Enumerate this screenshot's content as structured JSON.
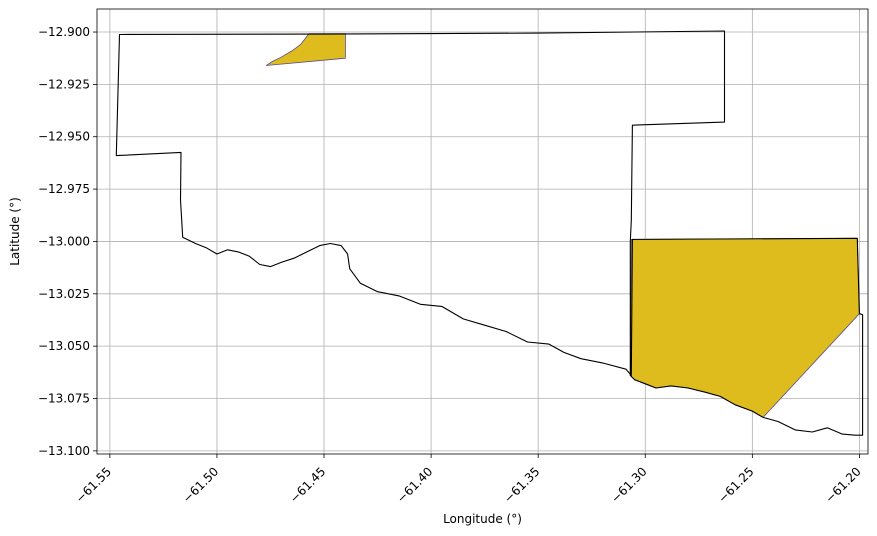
{
  "chart_data": {
    "type": "map",
    "xlabel": "Longitude (°)",
    "ylabel": "Latitude (°)",
    "xlim": [
      -61.556,
      -61.196
    ],
    "ylim": [
      -13.1015,
      -12.889
    ],
    "grid": true,
    "x_ticks": [
      {
        "value": -61.55,
        "label": "−61.55"
      },
      {
        "value": -61.5,
        "label": "−61.50"
      },
      {
        "value": -61.45,
        "label": "−61.45"
      },
      {
        "value": -61.4,
        "label": "−61.40"
      },
      {
        "value": -61.35,
        "label": "−61.35"
      },
      {
        "value": -61.3,
        "label": "−61.30"
      },
      {
        "value": -61.25,
        "label": "−61.25"
      },
      {
        "value": -61.2,
        "label": "−61.20"
      }
    ],
    "y_ticks": [
      {
        "value": -12.9,
        "label": "−12.900"
      },
      {
        "value": -12.925,
        "label": "−12.925"
      },
      {
        "value": -12.95,
        "label": "−12.950"
      },
      {
        "value": -12.975,
        "label": "−12.975"
      },
      {
        "value": -13.0,
        "label": "−13.000"
      },
      {
        "value": -13.025,
        "label": "−13.025"
      },
      {
        "value": -13.05,
        "label": "−13.050"
      },
      {
        "value": -13.075,
        "label": "−13.075"
      },
      {
        "value": -13.1,
        "label": "−13.100"
      }
    ],
    "boundary": {
      "stroke": "#000000",
      "fill": "none",
      "coords": [
        [
          -61.5455,
          -12.9012
        ],
        [
          -61.45,
          -12.901
        ],
        [
          -61.35,
          -12.9005
        ],
        [
          -61.263,
          -12.8995
        ],
        [
          -61.263,
          -12.943
        ],
        [
          -61.306,
          -12.9445
        ],
        [
          -61.3065,
          -12.99
        ],
        [
          -61.307,
          -13.0
        ],
        [
          -61.307,
          -13.064
        ],
        [
          -61.305,
          -13.066
        ],
        [
          -61.3,
          -13.068
        ],
        [
          -61.295,
          -13.07
        ],
        [
          -61.288,
          -13.069
        ],
        [
          -61.28,
          -13.07
        ],
        [
          -61.272,
          -13.072
        ],
        [
          -61.265,
          -13.074
        ],
        [
          -61.258,
          -13.078
        ],
        [
          -61.25,
          -13.081
        ],
        [
          -61.245,
          -13.084
        ],
        [
          -61.238,
          -13.086
        ],
        [
          -61.23,
          -13.09
        ],
        [
          -61.222,
          -13.091
        ],
        [
          -61.215,
          -13.089
        ],
        [
          -61.208,
          -13.092
        ],
        [
          -61.202,
          -13.0925
        ],
        [
          -61.1985,
          -13.0925
        ],
        [
          -61.1985,
          -13.035
        ],
        [
          -61.2,
          -13.0345
        ],
        [
          -61.201,
          -12.9985
        ],
        [
          -61.306,
          -12.999
        ],
        [
          -61.3065,
          -13.064
        ],
        [
          -61.309,
          -13.061
        ],
        [
          -61.32,
          -13.058
        ],
        [
          -61.33,
          -13.056
        ],
        [
          -61.338,
          -13.053
        ],
        [
          -61.345,
          -13.049
        ],
        [
          -61.355,
          -13.048
        ],
        [
          -61.365,
          -13.043
        ],
        [
          -61.375,
          -13.04
        ],
        [
          -61.385,
          -13.037
        ],
        [
          -61.395,
          -13.031
        ],
        [
          -61.405,
          -13.03
        ],
        [
          -61.415,
          -13.026
        ],
        [
          -61.425,
          -13.024
        ],
        [
          -61.433,
          -13.02
        ],
        [
          -61.438,
          -13.013
        ],
        [
          -61.439,
          -13.006
        ],
        [
          -61.442,
          -13.002
        ],
        [
          -61.447,
          -13.001
        ],
        [
          -61.452,
          -13.002
        ],
        [
          -61.458,
          -13.005
        ],
        [
          -61.464,
          -13.008
        ],
        [
          -61.47,
          -13.01
        ],
        [
          -61.475,
          -13.012
        ],
        [
          -61.48,
          -13.011
        ],
        [
          -61.485,
          -13.007
        ],
        [
          -61.49,
          -13.005
        ],
        [
          -61.495,
          -13.004
        ],
        [
          -61.5,
          -13.006
        ],
        [
          -61.505,
          -13.003
        ],
        [
          -61.51,
          -13.001
        ],
        [
          -61.516,
          -12.998
        ],
        [
          -61.517,
          -12.98
        ],
        [
          -61.5168,
          -12.9575
        ],
        [
          -61.547,
          -12.959
        ],
        [
          -61.5455,
          -12.9012
        ]
      ]
    },
    "highlighted_areas": [
      {
        "fill": "#dfbc1e",
        "stroke": "#5b4c8c",
        "coords": [
          [
            -61.457,
            -12.9008
          ],
          [
            -61.44,
            -12.9008
          ],
          [
            -61.44,
            -12.9125
          ],
          [
            -61.477,
            -12.916
          ],
          [
            -61.474,
            -12.914
          ],
          [
            -61.47,
            -12.912
          ],
          [
            -61.465,
            -12.909
          ],
          [
            -61.461,
            -12.906
          ],
          [
            -61.457,
            -12.9008
          ]
        ]
      },
      {
        "fill": "#dfbc1e",
        "stroke": "#5b4c8c",
        "coords": [
          [
            -61.3065,
            -12.999
          ],
          [
            -61.201,
            -12.9985
          ],
          [
            -61.2,
            -13.0345
          ],
          [
            -61.245,
            -13.084
          ],
          [
            -61.25,
            -13.081
          ],
          [
            -61.258,
            -13.078
          ],
          [
            -61.265,
            -13.074
          ],
          [
            -61.272,
            -13.072
          ],
          [
            -61.28,
            -13.07
          ],
          [
            -61.288,
            -13.069
          ],
          [
            -61.295,
            -13.07
          ],
          [
            -61.3,
            -13.068
          ],
          [
            -61.305,
            -13.066
          ],
          [
            -61.307,
            -13.064
          ],
          [
            -61.3065,
            -12.999
          ]
        ]
      }
    ]
  }
}
